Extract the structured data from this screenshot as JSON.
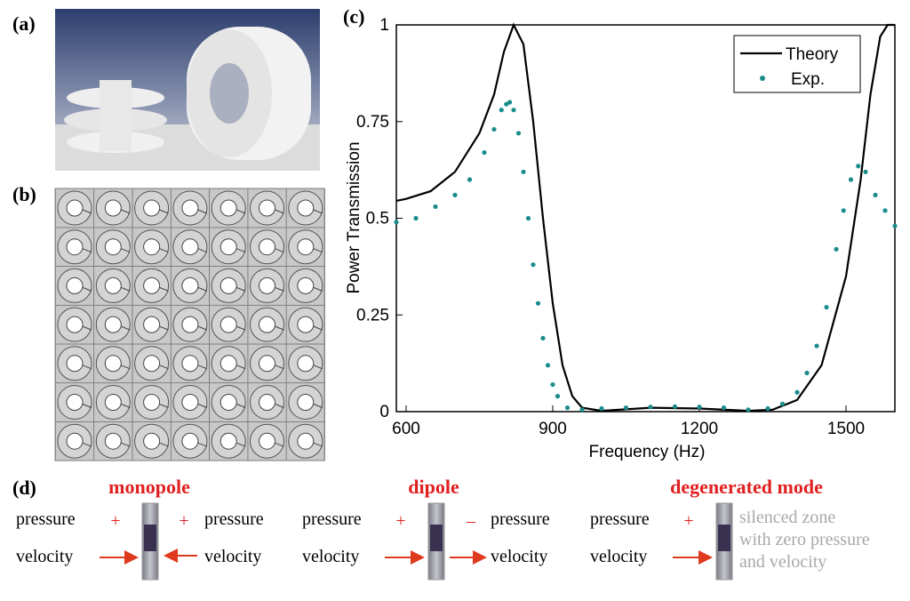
{
  "panel_labels": [
    "(a)",
    "(b)",
    "(c)",
    "(d)"
  ],
  "chart_data": {
    "type": "line",
    "xlabel": "Frequency (Hz)",
    "ylabel": "Power Transmission",
    "xlim": [
      580,
      1600
    ],
    "xticks": [
      600,
      900,
      1200,
      1500
    ],
    "ylim": [
      0,
      1
    ],
    "yticks": [
      0,
      0.25,
      0.5,
      0.75,
      1
    ],
    "legend": "upper right",
    "series": [
      {
        "name": "Theory",
        "type": "line",
        "color": "#000000",
        "x": [
          580,
          600,
          650,
          700,
          750,
          780,
          800,
          820,
          840,
          860,
          880,
          900,
          920,
          940,
          960,
          1000,
          1100,
          1200,
          1300,
          1350,
          1400,
          1450,
          1500,
          1530,
          1550,
          1570,
          1585,
          1600
        ],
        "values": [
          0.545,
          0.55,
          0.57,
          0.62,
          0.72,
          0.82,
          0.93,
          1.0,
          0.95,
          0.75,
          0.5,
          0.28,
          0.12,
          0.04,
          0.01,
          0.002,
          0.01,
          0.008,
          0.002,
          0.005,
          0.03,
          0.12,
          0.35,
          0.6,
          0.82,
          0.97,
          1.0,
          1.0
        ]
      },
      {
        "name": "Exp.",
        "type": "scatter",
        "color": "#1a8c8c",
        "x": [
          580,
          620,
          660,
          700,
          730,
          760,
          780,
          795,
          805,
          812,
          820,
          830,
          840,
          850,
          860,
          870,
          880,
          890,
          900,
          910,
          930,
          960,
          1000,
          1050,
          1100,
          1150,
          1200,
          1250,
          1300,
          1340,
          1370,
          1400,
          1420,
          1440,
          1460,
          1480,
          1495,
          1510,
          1525,
          1540,
          1560,
          1580,
          1600
        ],
        "values": [
          0.49,
          0.5,
          0.53,
          0.56,
          0.6,
          0.67,
          0.73,
          0.78,
          0.795,
          0.8,
          0.78,
          0.72,
          0.62,
          0.5,
          0.38,
          0.28,
          0.19,
          0.12,
          0.07,
          0.04,
          0.01,
          0.005,
          0.008,
          0.01,
          0.012,
          0.013,
          0.012,
          0.01,
          0.005,
          0.008,
          0.02,
          0.05,
          0.1,
          0.17,
          0.27,
          0.42,
          0.52,
          0.6,
          0.635,
          0.62,
          0.56,
          0.52,
          0.48
        ]
      }
    ]
  },
  "modes": [
    {
      "title": "monopole",
      "left": [
        "pressure",
        "velocity"
      ],
      "signs": [
        "+",
        "+"
      ],
      "right": [
        "pressure",
        "velocity"
      ]
    },
    {
      "title": "dipole",
      "left": [
        "pressure",
        "velocity"
      ],
      "signs": [
        "+",
        "–"
      ],
      "right": [
        "pressure",
        "velocity"
      ]
    },
    {
      "title": "degenerated mode",
      "left": [
        "pressure",
        "velocity"
      ],
      "signs": [
        "+"
      ],
      "right": [
        "silenced zone",
        "with zero pressure",
        "and velocity"
      ]
    }
  ]
}
